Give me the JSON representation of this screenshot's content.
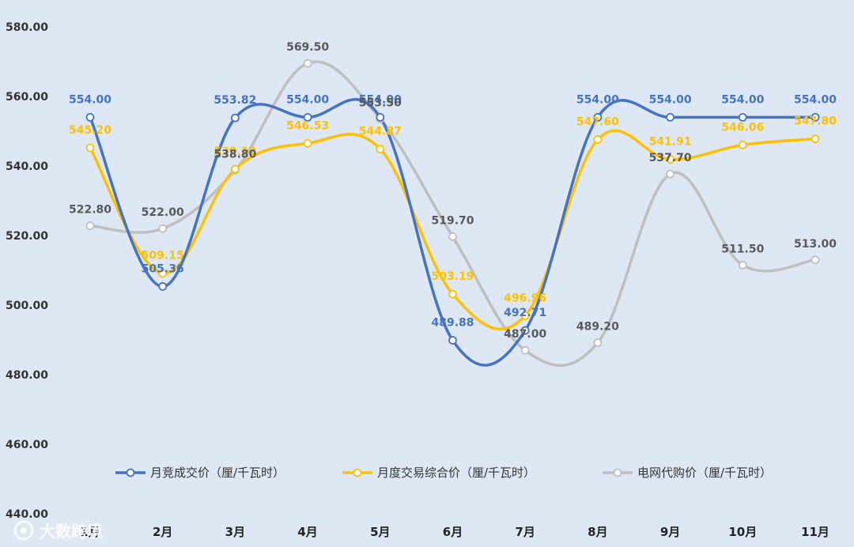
{
  "chart_data": {
    "type": "line",
    "categories": [
      "1月",
      "2月",
      "3月",
      "4月",
      "5月",
      "6月",
      "7月",
      "8月",
      "9月",
      "10月",
      "11月"
    ],
    "ylim": [
      440,
      580
    ],
    "yticks": [
      "440.00",
      "460.00",
      "480.00",
      "500.00",
      "520.00",
      "540.00",
      "560.00",
      "580.00"
    ],
    "grid": false,
    "legend": "bottom-center",
    "series": [
      {
        "name": "月竞成交价（厘/千瓦时）",
        "color": "#4472c4",
        "values": [
          554.0,
          505.36,
          553.82,
          554.0,
          554.0,
          489.88,
          492.71,
          554.0,
          554.0,
          554.0,
          554.0
        ],
        "labels": [
          "554.00",
          "505.36",
          "553.82",
          "554.00",
          "554.00",
          "489.88",
          "492.71",
          "554.00",
          "554.00",
          "554.00",
          "554.00"
        ]
      },
      {
        "name": "月度交易综合价（厘/千瓦时）",
        "color": "#ffc000",
        "values": [
          545.2,
          509.15,
          539.12,
          546.53,
          544.87,
          503.19,
          496.96,
          547.6,
          541.91,
          546.06,
          547.8
        ],
        "labels": [
          "545.20",
          "509.15",
          "539.12",
          "546.53",
          "544.87",
          "503.19",
          "496.96",
          "547.60",
          "541.91",
          "546.06",
          "547.80"
        ]
      },
      {
        "name": "电网代购价（厘/千瓦时）",
        "color": "#bfbfbf",
        "label_color": "#595959",
        "values": [
          522.8,
          522.0,
          538.8,
          569.5,
          553.5,
          519.7,
          487.0,
          489.2,
          537.7,
          511.5,
          513.0
        ],
        "labels": [
          "522.80",
          "522.00",
          "538.80",
          "569.50",
          "553.50",
          "519.70",
          "487.00",
          "489.20",
          "537.70",
          "511.50",
          "513.00"
        ]
      }
    ]
  },
  "watermark": {
    "text": "大数跨境",
    "icon": "logo-icon"
  }
}
